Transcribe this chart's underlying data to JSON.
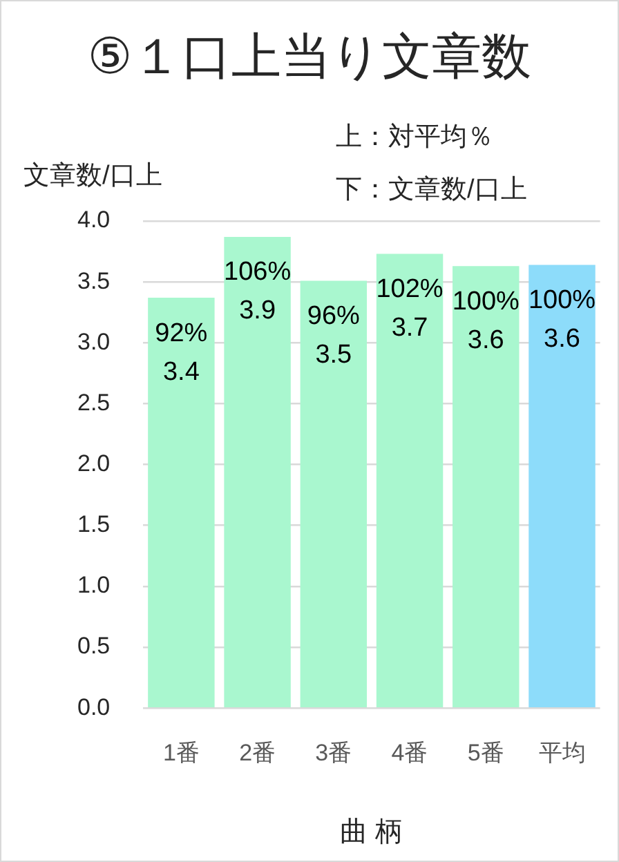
{
  "chart_data": {
    "type": "bar",
    "title": "⑤１口上当り文章数",
    "ylabel": "文章数/口上",
    "xlabel": "曲 柄",
    "annotations": [
      "上：対平均％",
      "下：文章数/口上"
    ],
    "categories": [
      "1番",
      "2番",
      "3番",
      "4番",
      "5番",
      "平均"
    ],
    "values": [
      3.37,
      3.87,
      3.51,
      3.73,
      3.63,
      3.64
    ],
    "colors": [
      "#a9f7cf",
      "#a9f7cf",
      "#a9f7cf",
      "#a9f7cf",
      "#a9f7cf",
      "#8ddcfa"
    ],
    "value_labels": [
      "92%\n3.4",
      "106%\n3.9",
      "96%\n3.5",
      "102%\n3.7",
      "100%\n3.6",
      "100%\n3.6"
    ],
    "ylim": [
      0,
      4
    ],
    "yticks": [
      {
        "value": 0,
        "label": "0.0"
      },
      {
        "value": 0.5,
        "label": "0.5"
      },
      {
        "value": 1,
        "label": "1.0"
      },
      {
        "value": 1.5,
        "label": "1.5"
      },
      {
        "value": 2,
        "label": "2.0"
      },
      {
        "value": 2.5,
        "label": "2.5"
      },
      {
        "value": 3,
        "label": "3.0"
      },
      {
        "value": 3.5,
        "label": "3.5"
      },
      {
        "value": 4,
        "label": "4.0"
      }
    ],
    "grid": "y"
  }
}
